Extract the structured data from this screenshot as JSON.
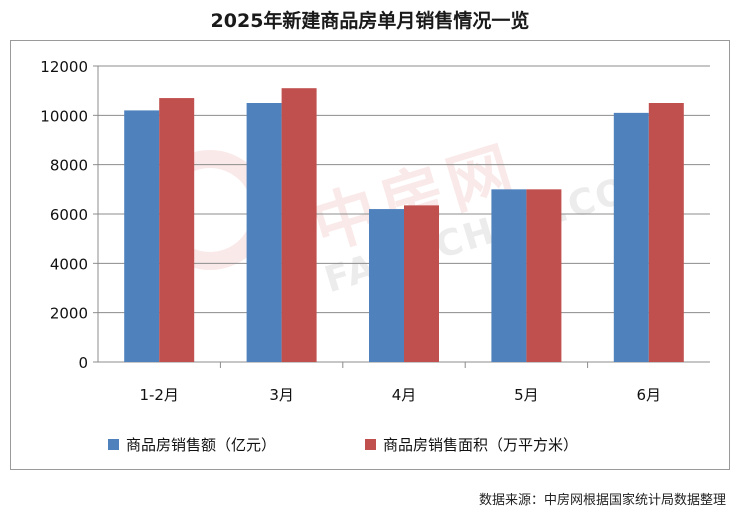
{
  "header": {
    "title": "2025年新建商品房单月销售情况一览"
  },
  "source_note": "数据来源：中房网根据国家统计局数据整理",
  "watermark": {
    "cn": "中房网",
    "en": "FANGCHAN.COM"
  },
  "colors": {
    "series1": "#4f81bd",
    "series2": "#c0504d",
    "grid": "#8c8c8c"
  },
  "chart_data": {
    "type": "bar",
    "title": "2025年新建商品房单月销售情况一览",
    "categories": [
      "1-2月",
      "3月",
      "4月",
      "5月",
      "6月"
    ],
    "series": [
      {
        "name": "商品房销售额（亿元）",
        "values": [
          10200,
          10500,
          6200,
          7000,
          10100
        ]
      },
      {
        "name": "商品房销售面积（万平方米）",
        "values": [
          10700,
          11100,
          6350,
          7000,
          10500
        ]
      }
    ],
    "ylim": [
      0,
      12000
    ],
    "yticks": [
      0,
      2000,
      4000,
      6000,
      8000,
      10000,
      12000
    ],
    "grid": true,
    "legend": "bottom"
  }
}
